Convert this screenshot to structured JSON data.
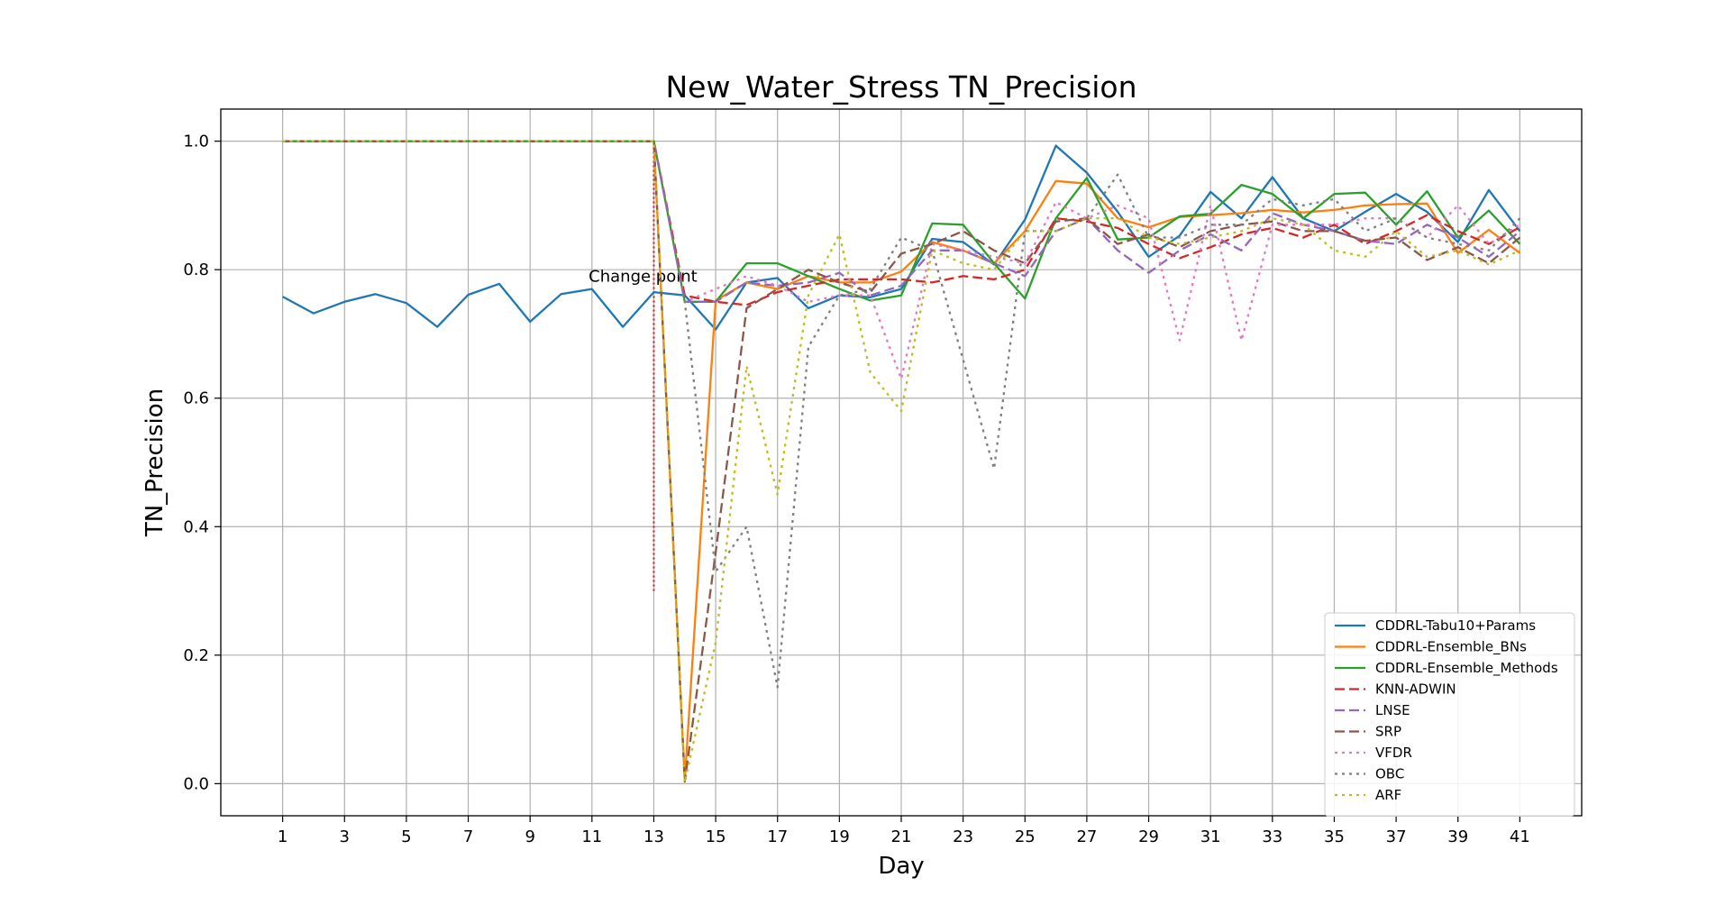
{
  "chart_data": {
    "type": "line",
    "title": "New_Water_Stress TN_Precision",
    "xlabel": "Day",
    "ylabel": "TN_Precision",
    "xlim": [
      -1,
      43
    ],
    "ylim": [
      -0.05,
      1.05
    ],
    "xticks": [
      1,
      3,
      5,
      7,
      9,
      11,
      13,
      15,
      17,
      19,
      21,
      23,
      25,
      27,
      29,
      31,
      33,
      35,
      37,
      39,
      41
    ],
    "yticks": [
      0.0,
      0.2,
      0.4,
      0.6,
      0.8,
      1.0
    ],
    "ytick_labels": [
      "0.0",
      "0.2",
      "0.4",
      "0.6",
      "0.8",
      "1.0"
    ],
    "grid": true,
    "legend_position": "lower-right",
    "annotation": {
      "text": "Change point",
      "x": 13,
      "y_from": 0.3,
      "y_to": 1.0,
      "color": "#d62728"
    },
    "x": [
      1,
      2,
      3,
      4,
      5,
      6,
      7,
      8,
      9,
      10,
      11,
      12,
      13,
      14,
      15,
      16,
      17,
      18,
      19,
      20,
      21,
      22,
      23,
      24,
      25,
      26,
      27,
      28,
      29,
      30,
      31,
      32,
      33,
      34,
      35,
      36,
      37,
      38,
      39,
      40,
      41
    ],
    "series": [
      {
        "name": "CDDRL-Tabu10+Params",
        "color": "#1f77b4",
        "dash": "solid",
        "values": [
          0.758,
          0.732,
          0.75,
          0.762,
          0.748,
          0.711,
          0.761,
          0.778,
          0.719,
          0.762,
          0.77,
          0.711,
          0.765,
          0.76,
          0.707,
          0.78,
          0.787,
          0.74,
          0.76,
          0.757,
          0.77,
          0.848,
          0.843,
          0.808,
          0.878,
          0.993,
          0.951,
          0.89,
          0.82,
          0.853,
          0.921,
          0.88,
          0.944,
          0.88,
          0.86,
          0.89,
          0.918,
          0.89,
          0.843,
          0.924,
          0.86
        ]
      },
      {
        "name": "CDDRL-Ensemble_BNs",
        "color": "#ff7f0e",
        "dash": "solid",
        "values": [
          1.0,
          1.0,
          1.0,
          1.0,
          1.0,
          1.0,
          1.0,
          1.0,
          1.0,
          1.0,
          1.0,
          1.0,
          1.0,
          0.005,
          0.752,
          0.78,
          0.77,
          0.79,
          0.78,
          0.78,
          0.797,
          0.843,
          0.83,
          0.81,
          0.86,
          0.938,
          0.934,
          0.88,
          0.866,
          0.882,
          0.885,
          0.888,
          0.893,
          0.889,
          0.893,
          0.9,
          0.902,
          0.903,
          0.826,
          0.862,
          0.826
        ]
      },
      {
        "name": "CDDRL-Ensemble_Methods",
        "color": "#2ca02c",
        "dash": "solid",
        "values": [
          1.0,
          1.0,
          1.0,
          1.0,
          1.0,
          1.0,
          1.0,
          1.0,
          1.0,
          1.0,
          1.0,
          1.0,
          1.0,
          0.75,
          0.75,
          0.81,
          0.81,
          0.79,
          0.77,
          0.752,
          0.76,
          0.872,
          0.87,
          0.81,
          0.755,
          0.88,
          0.943,
          0.847,
          0.85,
          0.883,
          0.887,
          0.932,
          0.918,
          0.88,
          0.918,
          0.92,
          0.87,
          0.922,
          0.85,
          0.892,
          0.84
        ]
      },
      {
        "name": "KNN-ADWIN",
        "color": "#d62728",
        "dash": "dashed",
        "values": [
          1.0,
          1.0,
          1.0,
          1.0,
          1.0,
          1.0,
          1.0,
          1.0,
          1.0,
          1.0,
          1.0,
          1.0,
          1.0,
          0.76,
          0.75,
          0.745,
          0.765,
          0.775,
          0.785,
          0.785,
          0.785,
          0.78,
          0.79,
          0.785,
          0.8,
          0.88,
          0.875,
          0.865,
          0.84,
          0.818,
          0.835,
          0.855,
          0.865,
          0.85,
          0.87,
          0.84,
          0.86,
          0.885,
          0.86,
          0.84,
          0.866
        ]
      },
      {
        "name": "LNSE",
        "color": "#9467bd",
        "dash": "dashed",
        "values": [
          1.0,
          1.0,
          1.0,
          1.0,
          1.0,
          1.0,
          1.0,
          1.0,
          1.0,
          1.0,
          1.0,
          1.0,
          1.0,
          0.75,
          0.75,
          0.78,
          0.775,
          0.78,
          0.795,
          0.76,
          0.775,
          0.83,
          0.83,
          0.81,
          0.79,
          0.86,
          0.88,
          0.83,
          0.795,
          0.83,
          0.855,
          0.83,
          0.888,
          0.87,
          0.86,
          0.845,
          0.84,
          0.87,
          0.85,
          0.82,
          0.86
        ]
      },
      {
        "name": "SRP",
        "color": "#8c564b",
        "dash": "dashed",
        "values": [
          1.0,
          1.0,
          1.0,
          1.0,
          1.0,
          1.0,
          1.0,
          1.0,
          1.0,
          1.0,
          1.0,
          1.0,
          1.0,
          0.003,
          0.36,
          0.74,
          0.77,
          0.8,
          0.78,
          0.765,
          0.825,
          0.84,
          0.86,
          0.83,
          0.81,
          0.875,
          0.88,
          0.84,
          0.855,
          0.835,
          0.86,
          0.87,
          0.875,
          0.86,
          0.86,
          0.845,
          0.85,
          0.815,
          0.835,
          0.81,
          0.85
        ]
      },
      {
        "name": "VFDR",
        "color": "#e377c2",
        "dash": "dotted",
        "values": [
          1.0,
          1.0,
          1.0,
          1.0,
          1.0,
          1.0,
          1.0,
          1.0,
          1.0,
          1.0,
          1.0,
          1.0,
          1.0,
          0.75,
          0.77,
          0.79,
          0.775,
          0.75,
          0.76,
          0.76,
          0.63,
          0.84,
          0.83,
          0.82,
          0.81,
          0.905,
          0.88,
          0.9,
          0.88,
          0.69,
          0.9,
          0.69,
          0.87,
          0.87,
          0.87,
          0.88,
          0.88,
          0.85,
          0.9,
          0.84,
          0.87
        ]
      },
      {
        "name": "OBC",
        "color": "#7f7f7f",
        "dash": "dotted",
        "values": [
          1.0,
          1.0,
          1.0,
          1.0,
          1.0,
          1.0,
          1.0,
          1.0,
          1.0,
          1.0,
          1.0,
          1.0,
          1.0,
          0.75,
          0.33,
          0.4,
          0.15,
          0.68,
          0.76,
          0.77,
          0.85,
          0.83,
          0.66,
          0.49,
          0.86,
          0.86,
          0.88,
          0.948,
          0.85,
          0.85,
          0.87,
          0.87,
          0.91,
          0.9,
          0.91,
          0.86,
          0.88,
          0.85,
          0.84,
          0.83,
          0.88
        ]
      },
      {
        "name": "ARF",
        "color": "#bcbd22",
        "dash": "dotted",
        "values": [
          1.0,
          1.0,
          1.0,
          1.0,
          1.0,
          1.0,
          1.0,
          1.0,
          1.0,
          1.0,
          1.0,
          1.0,
          1.0,
          0.002,
          0.22,
          0.65,
          0.45,
          0.76,
          0.855,
          0.64,
          0.58,
          0.83,
          0.81,
          0.8,
          0.86,
          0.86,
          0.88,
          0.88,
          0.85,
          0.84,
          0.85,
          0.86,
          0.88,
          0.87,
          0.83,
          0.82,
          0.86,
          0.82,
          0.83,
          0.808,
          0.83
        ]
      }
    ]
  }
}
